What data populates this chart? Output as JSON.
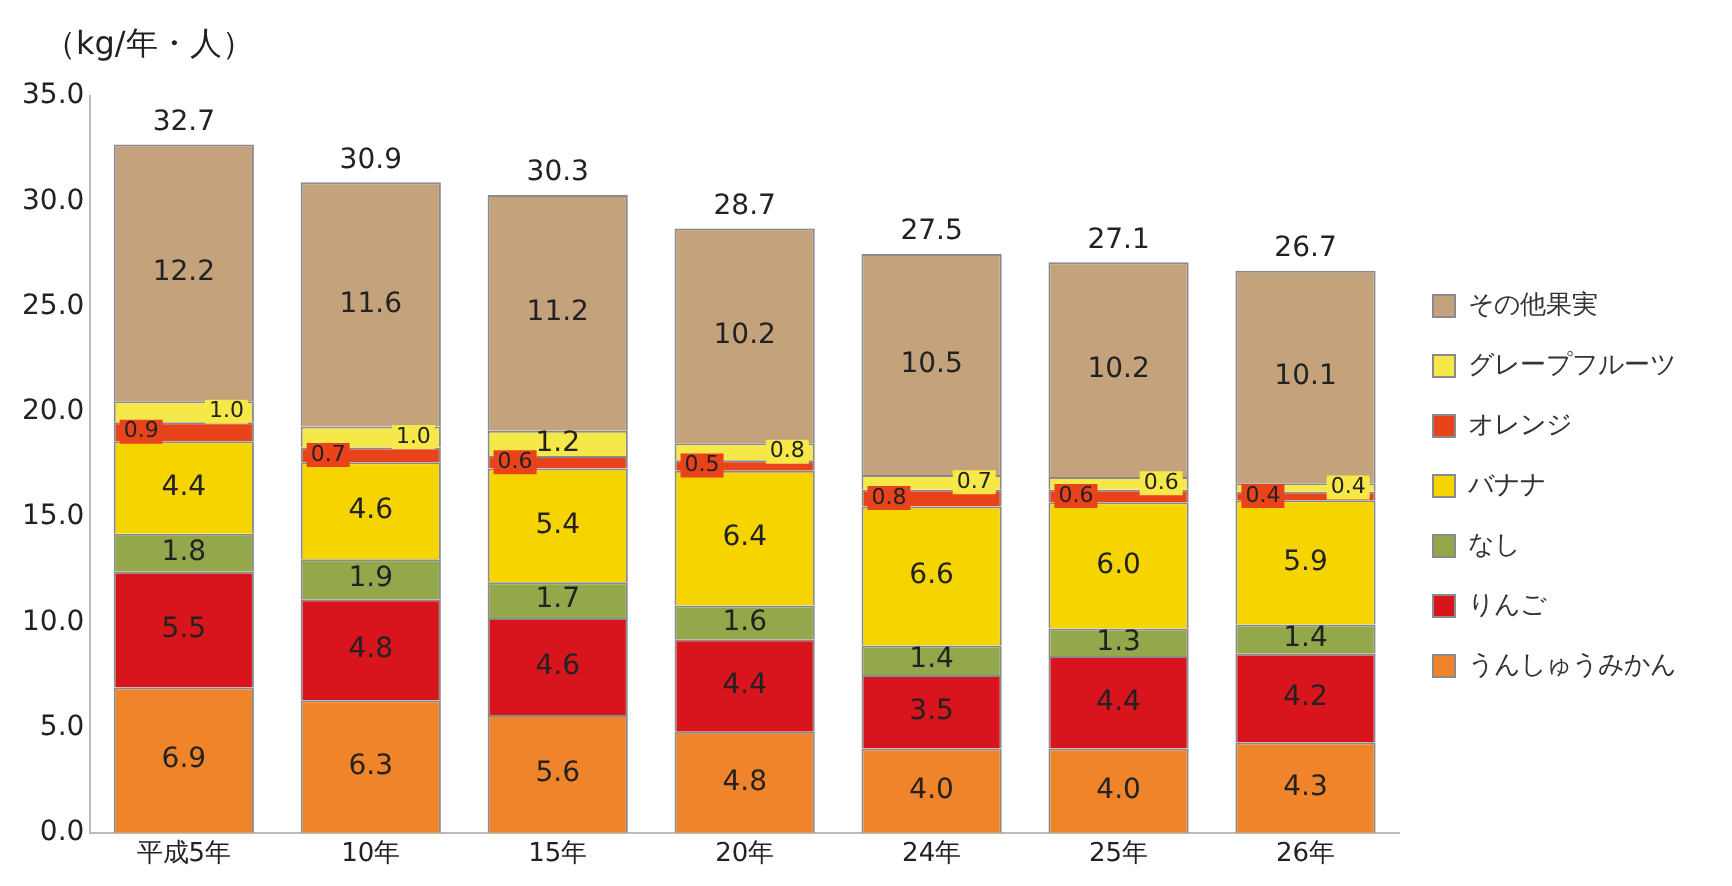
{
  "chart_data": {
    "type": "bar",
    "stacked": true,
    "ylabel": "（kg/年・人）",
    "categories": [
      "平成5年",
      "10年",
      "15年",
      "20年",
      "24年",
      "25年",
      "26年"
    ],
    "series": [
      {
        "name": "うんしゅうみかん",
        "color": "#f0842a",
        "values": [
          6.9,
          6.3,
          5.6,
          4.8,
          4.0,
          4.0,
          4.3
        ],
        "value_labels": [
          "6.9",
          "6.3",
          "5.6",
          "4.8",
          "4.0",
          "4.0",
          "4.3"
        ]
      },
      {
        "name": "りんご",
        "color": "#d8141c",
        "values": [
          5.5,
          4.8,
          4.6,
          4.4,
          3.5,
          4.4,
          4.2
        ],
        "value_labels": [
          "5.5",
          "4.8",
          "4.6",
          "4.4",
          "3.5",
          "4.4",
          "4.2"
        ]
      },
      {
        "name": "なし",
        "color": "#93a84a",
        "values": [
          1.8,
          1.9,
          1.7,
          1.6,
          1.4,
          1.3,
          1.4
        ],
        "value_labels": [
          "1.8",
          "1.9",
          "1.7",
          "1.6",
          "1.4",
          "1.3",
          "1.4"
        ]
      },
      {
        "name": "バナナ",
        "color": "#f5d400",
        "values": [
          4.4,
          4.6,
          5.4,
          6.4,
          6.6,
          6.0,
          5.9
        ],
        "value_labels": [
          "4.4",
          "4.6",
          "5.4",
          "6.4",
          "6.6",
          "6.0",
          "5.9"
        ]
      },
      {
        "name": "オレンジ",
        "color": "#e8431a",
        "values": [
          0.9,
          0.7,
          0.6,
          0.5,
          0.8,
          0.6,
          0.4
        ],
        "value_labels": [
          "0.9",
          "0.7",
          "0.6",
          "0.5",
          "0.8",
          "0.6",
          "0.4"
        ]
      },
      {
        "name": "グレープフルーツ",
        "color": "#f7e84a",
        "values": [
          1.0,
          1.0,
          1.2,
          0.8,
          0.7,
          0.6,
          0.4
        ],
        "value_labels": [
          "1.0",
          "1.0",
          "1.2",
          "0.8",
          "0.7",
          "0.6",
          "0.4"
        ]
      },
      {
        "name": "その他果実",
        "color": "#c4a27c",
        "values": [
          12.2,
          11.6,
          11.2,
          10.2,
          10.5,
          10.2,
          10.1
        ],
        "value_labels": [
          "12.2",
          "11.6",
          "11.2",
          "10.2",
          "10.5",
          "10.2",
          "10.1"
        ]
      }
    ],
    "totals": [
      "32.7",
      "30.9",
      "30.3",
      "28.7",
      "27.5",
      "27.1",
      "26.7"
    ],
    "ylim": [
      0,
      35
    ],
    "yticks": [
      {
        "value": 0,
        "label": "0.0"
      },
      {
        "value": 5,
        "label": "5.0"
      },
      {
        "value": 10,
        "label": "10.0"
      },
      {
        "value": 15,
        "label": "15.0"
      },
      {
        "value": 20,
        "label": "20.0"
      },
      {
        "value": 25,
        "label": "25.0"
      },
      {
        "value": 30,
        "label": "30.0"
      },
      {
        "value": 35,
        "label": "35.0"
      }
    ],
    "grid": false,
    "legend": "right"
  }
}
